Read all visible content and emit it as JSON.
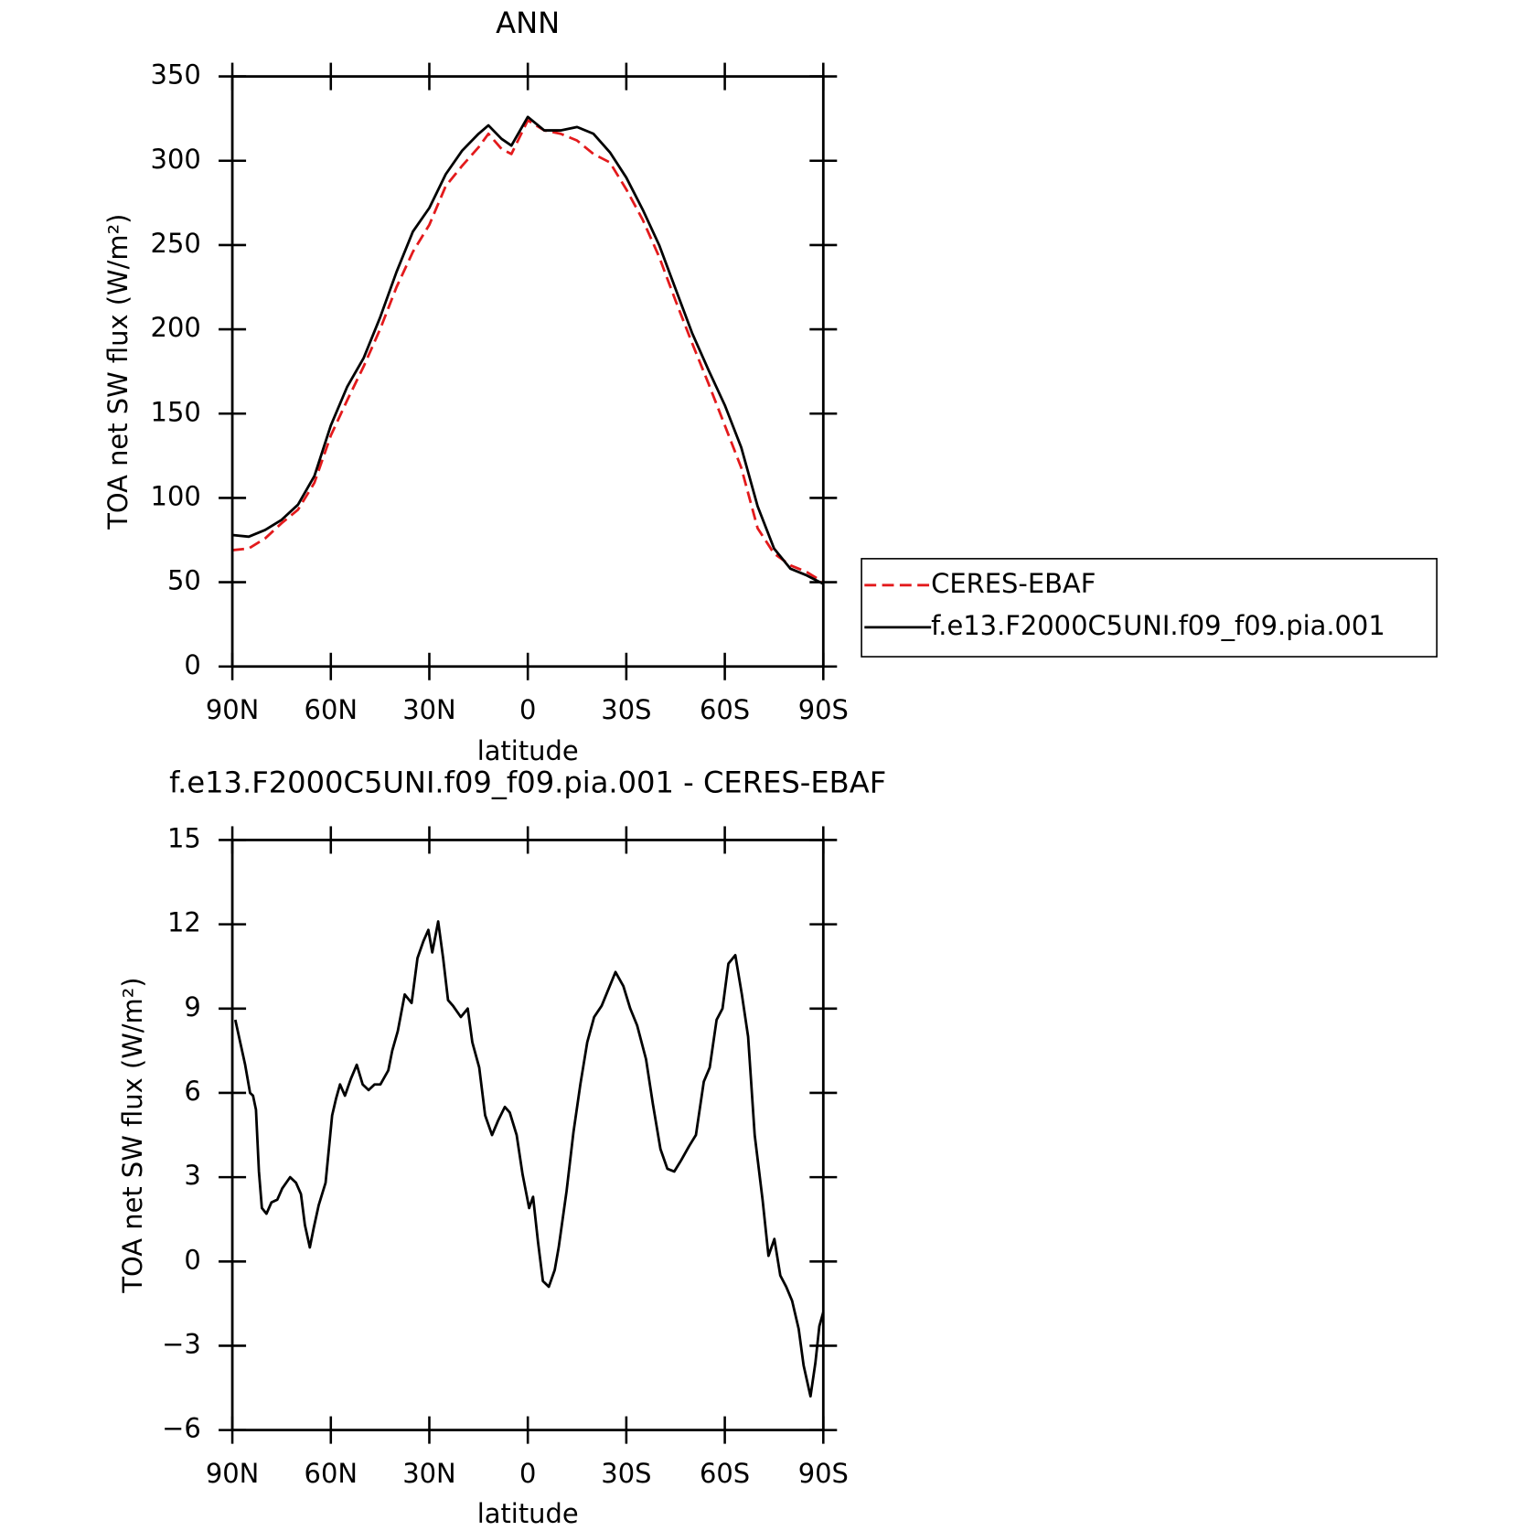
{
  "chart_data": [
    {
      "type": "line",
      "title": "ANN",
      "xlabel": "latitude",
      "ylabel": "TOA net SW flux (W/m²)",
      "xlim": [
        90,
        -90
      ],
      "ylim": [
        0,
        350
      ],
      "xticks": [
        {
          "value": 90,
          "label": "90N"
        },
        {
          "value": 60,
          "label": "60N"
        },
        {
          "value": 30,
          "label": "30N"
        },
        0,
        {
          "value": -30,
          "label": "30S"
        },
        {
          "value": -60,
          "label": "60S"
        },
        {
          "value": -90,
          "label": "90S"
        }
      ],
      "yticks": [
        0,
        50,
        100,
        150,
        200,
        250,
        300,
        350
      ],
      "legend": "right",
      "x": [
        90,
        85,
        80,
        75,
        70,
        65,
        60,
        55,
        50,
        45,
        40,
        35,
        30,
        25,
        20,
        15,
        12,
        8,
        5,
        0,
        -5,
        -10,
        -15,
        -20,
        -25,
        -30,
        -35,
        -40,
        -45,
        -50,
        -55,
        -60,
        -65,
        -70,
        -75,
        -80,
        -85,
        -90
      ],
      "series": [
        {
          "name": "CERES-EBAF",
          "color": "#e31a1c",
          "dash": true,
          "values": [
            69,
            70,
            76,
            85,
            93,
            109,
            137,
            158,
            178,
            200,
            225,
            246,
            262,
            285,
            297,
            308,
            316,
            307,
            304,
            324,
            318,
            316,
            312,
            304,
            299,
            283,
            265,
            243,
            217,
            192,
            168,
            143,
            118,
            82,
            67,
            60,
            56,
            50
          ]
        },
        {
          "name": "f.e13.F2000C5UNI.f09_f09.pia.001",
          "color": "#000000",
          "dash": false,
          "values": [
            78,
            77,
            81,
            87,
            96,
            113,
            143,
            166,
            183,
            207,
            234,
            258,
            272,
            292,
            306,
            316,
            321,
            313,
            309,
            326,
            318,
            318,
            320,
            316,
            305,
            290,
            271,
            250,
            224,
            198,
            176,
            155,
            130,
            95,
            70,
            58,
            54,
            49
          ]
        }
      ]
    },
    {
      "type": "line",
      "title": "f.e13.F2000C5UNI.f09_f09.pia.001 - CERES-EBAF",
      "xlabel": "latitude",
      "ylabel": "TOA net SW flux (W/m²)",
      "xlim": [
        90,
        -90
      ],
      "ylim": [
        -6,
        15
      ],
      "xticks": [
        {
          "value": 90,
          "label": "90N"
        },
        {
          "value": 60,
          "label": "60N"
        },
        {
          "value": 30,
          "label": "30N"
        },
        0,
        {
          "value": -30,
          "label": "30S"
        },
        {
          "value": -60,
          "label": "60S"
        },
        {
          "value": -90,
          "label": "90S"
        }
      ],
      "yticks": [
        {
          "value": -6,
          "label": "−6"
        },
        {
          "value": -3,
          "label": "−3"
        },
        0,
        3,
        6,
        9,
        12,
        15
      ],
      "x": [
        89.1,
        86.1,
        84.6,
        83.7,
        82.8,
        81.9,
        81,
        79.6,
        78.1,
        76.3,
        74.8,
        72.4,
        70.6,
        69.1,
        67.9,
        66.4,
        65.2,
        63.7,
        61.6,
        59.6,
        58.4,
        57.2,
        55.7,
        53.9,
        52.1,
        50.3,
        48.5,
        46.7,
        44.9,
        42.5,
        41.3,
        39.6,
        37.5,
        35.4,
        33.6,
        31.8,
        30.3,
        29.1,
        27.3,
        25.8,
        24.3,
        22.8,
        20.4,
        18.3,
        16.9,
        14.8,
        13,
        10.9,
        9.1,
        7,
        5.5,
        3.4,
        1.6,
        -0.4,
        -1.6,
        -3.1,
        -4.6,
        -6.4,
        -8.2,
        -9.4,
        -11.8,
        -13.9,
        -16,
        -18.1,
        -20.2,
        -22.5,
        -24.6,
        -26.7,
        -29.1,
        -31.2,
        -33.3,
        -36,
        -38.1,
        -40.4,
        -42.5,
        -44.6,
        -46.7,
        -49.1,
        -51.2,
        -53.6,
        -55.4,
        -57.5,
        -59.3,
        -61.1,
        -63.2,
        -65.2,
        -67.1,
        -69.1,
        -71.5,
        -73.3,
        -75.1,
        -76.9,
        -78.7,
        -80.5,
        -82.5,
        -84,
        -86.1,
        -87.6,
        -88.8,
        -90
      ],
      "color": "#000000",
      "values": [
        8.6,
        7.0,
        6.0,
        5.9,
        5.4,
        3.2,
        1.9,
        1.7,
        2.1,
        2.2,
        2.6,
        3.0,
        2.8,
        2.4,
        1.3,
        0.5,
        1.2,
        2.0,
        2.8,
        5.2,
        5.8,
        6.3,
        5.9,
        6.5,
        7.0,
        6.3,
        6.1,
        6.3,
        6.3,
        6.8,
        7.5,
        8.2,
        9.5,
        9.2,
        10.8,
        11.4,
        11.8,
        11.0,
        12.1,
        10.8,
        9.3,
        9.1,
        8.7,
        9.0,
        7.8,
        6.9,
        5.2,
        4.5,
        5.0,
        5.5,
        5.3,
        4.5,
        3.1,
        1.9,
        2.3,
        0.7,
        -0.7,
        -0.9,
        -0.3,
        0.5,
        2.5,
        4.6,
        6.3,
        7.8,
        8.7,
        9.1,
        9.7,
        10.3,
        9.8,
        9.0,
        8.4,
        7.2,
        5.6,
        4.0,
        3.3,
        3.2,
        3.6,
        4.1,
        4.5,
        6.4,
        6.9,
        8.6,
        9.0,
        10.6,
        10.9,
        9.5,
        8.0,
        4.5,
        2.2,
        0.2,
        0.8,
        -0.5,
        -0.9,
        -1.4,
        -2.4,
        -3.7,
        -4.8,
        -3.6,
        -2.3,
        -1.8
      ]
    }
  ]
}
